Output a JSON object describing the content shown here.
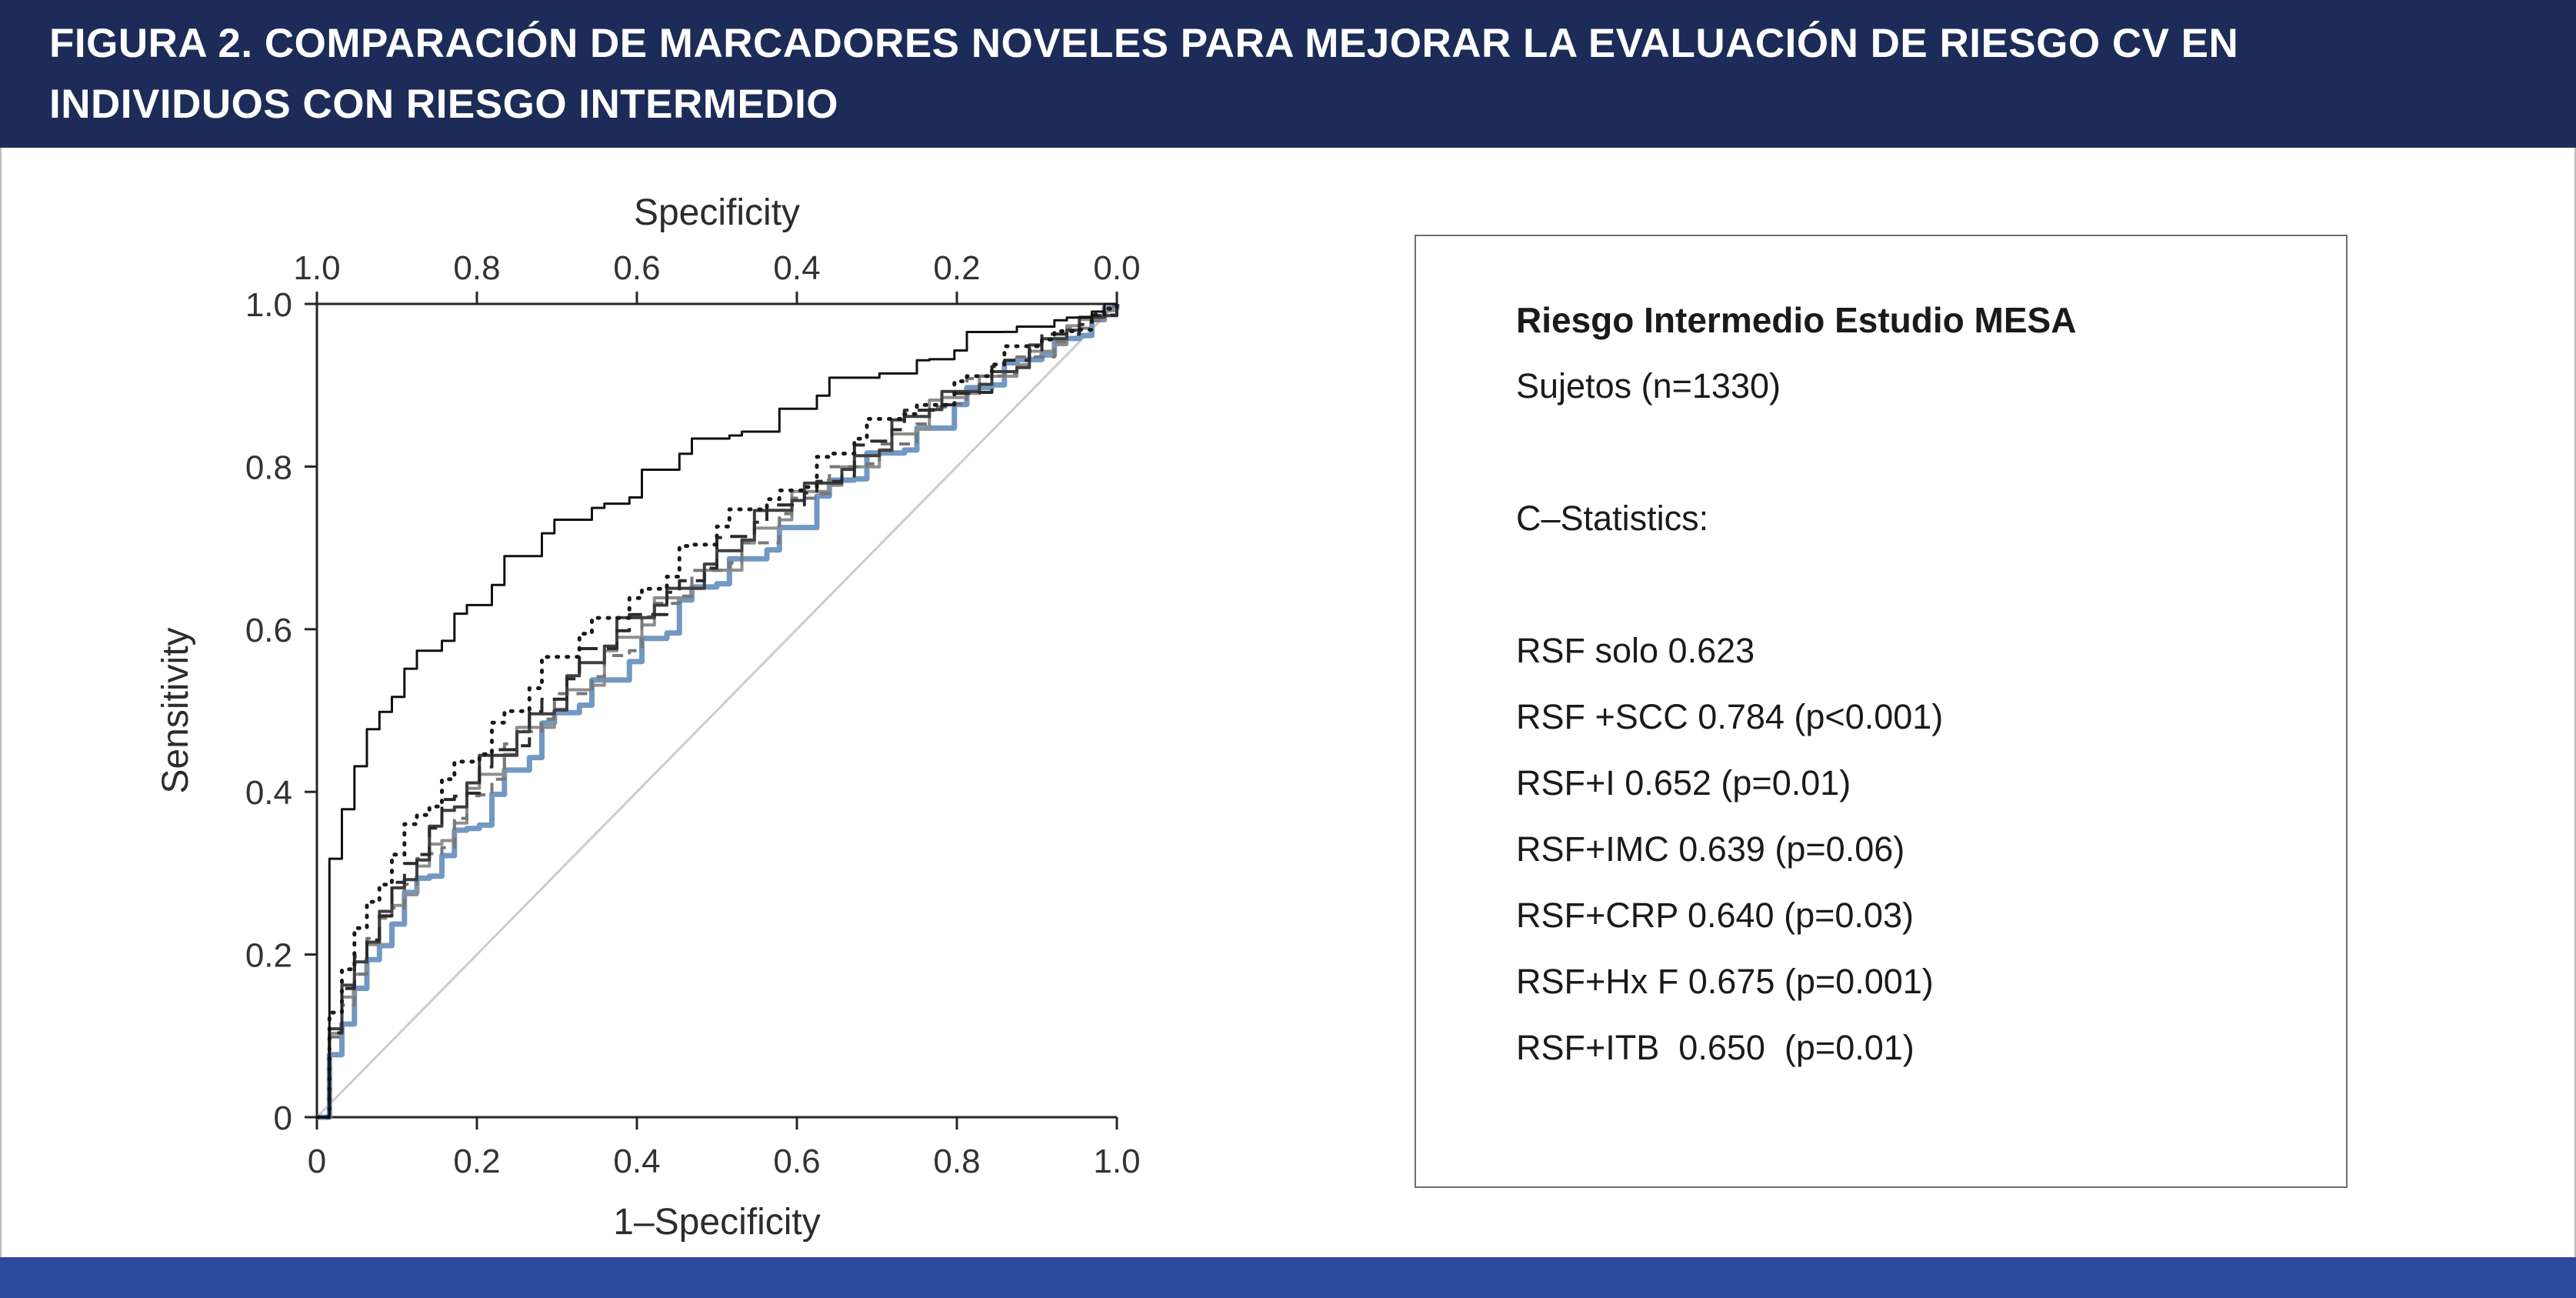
{
  "header": {
    "title_line1": "FIGURA 2. COMPARACIÓN DE MARCADORES NOVELES PARA MEJORAR LA EVALUACIÓN DE RIESGO CV EN",
    "title_line2": "INDIVIDUOS CON RIESGO INTERMEDIO",
    "background": "#1c2b57",
    "text_color": "#ffffff"
  },
  "stats_panel": {
    "title": "Riesgo Intermedio Estudio MESA",
    "subtitle": "Sujetos (n=1330)",
    "section_label": "C–Statistics:",
    "lines": [
      "RSF solo 0.623",
      "RSF +SCC 0.784 (p<0.001)",
      "RSF+I 0.652 (p=0.01)",
      "RSF+IMC 0.639 (p=0.06)",
      "RSF+CRP 0.640 (p=0.03)",
      "RSF+Hx F 0.675 (p=0.001)",
      "RSF+ITB  0.650  (p=0.01)"
    ]
  },
  "footer": {
    "background": "#2b4a9d"
  },
  "chart_data": {
    "type": "line",
    "subtype": "roc-curves",
    "title": "",
    "xlabel": "1–Specificity",
    "ylabel": "Sensitivity",
    "top_axis_label": "Specificity",
    "xlim": [
      0,
      1
    ],
    "ylim": [
      0,
      1
    ],
    "grid": false,
    "legend": "none",
    "x_ticks": [
      0,
      0.2,
      0.4,
      0.6,
      0.8,
      1.0
    ],
    "x_tick_labels": [
      "0",
      "0.2",
      "0.4",
      "0.6",
      "0.8",
      "1.0"
    ],
    "y_tick_labels": [
      "0",
      "0.2",
      "0.4",
      "0.6",
      "0.8",
      "1.0"
    ],
    "top_tick_labels": [
      "1.0",
      "0.8",
      "0.6",
      "0.4",
      "0.2",
      "0.0"
    ],
    "reference_line": {
      "from": [
        0,
        0
      ],
      "to": [
        1,
        1
      ],
      "color": "#cccccc"
    },
    "series": [
      {
        "name": "RSF solo",
        "auc": 0.623,
        "color": "#7298c4",
        "dash": "",
        "width": 7,
        "seed": 7
      },
      {
        "name": "RSF+CRP",
        "auc": 0.64,
        "p": "p=0.03",
        "color": "#8d8d8d",
        "dash": "",
        "width": 4,
        "seed": 5
      },
      {
        "name": "RSF+IMC",
        "auc": 0.639,
        "p": "p=0.06",
        "color": "#777777",
        "dash": "14 10",
        "width": 4,
        "seed": 6
      },
      {
        "name": "RSF+ITB",
        "auc": 0.65,
        "p": "p=0.01",
        "color": "#3f3f3f",
        "dash": "",
        "width": 4,
        "seed": 4
      },
      {
        "name": "RSF+I",
        "auc": 0.652,
        "p": "p=0.01",
        "color": "#2b2b2b",
        "dash": "22 12",
        "width": 4,
        "seed": 3
      },
      {
        "name": "RSF+Hx F",
        "auc": 0.675,
        "p": "p=0.001",
        "color": "#1a1a1a",
        "dash": "2 11",
        "width": 5,
        "seed": 2,
        "linecap": "round"
      },
      {
        "name": "RSF +SCC",
        "auc": 0.784,
        "p": "p<0.001",
        "color": "#111111",
        "dash": "",
        "width": 3,
        "seed": 1
      }
    ]
  }
}
